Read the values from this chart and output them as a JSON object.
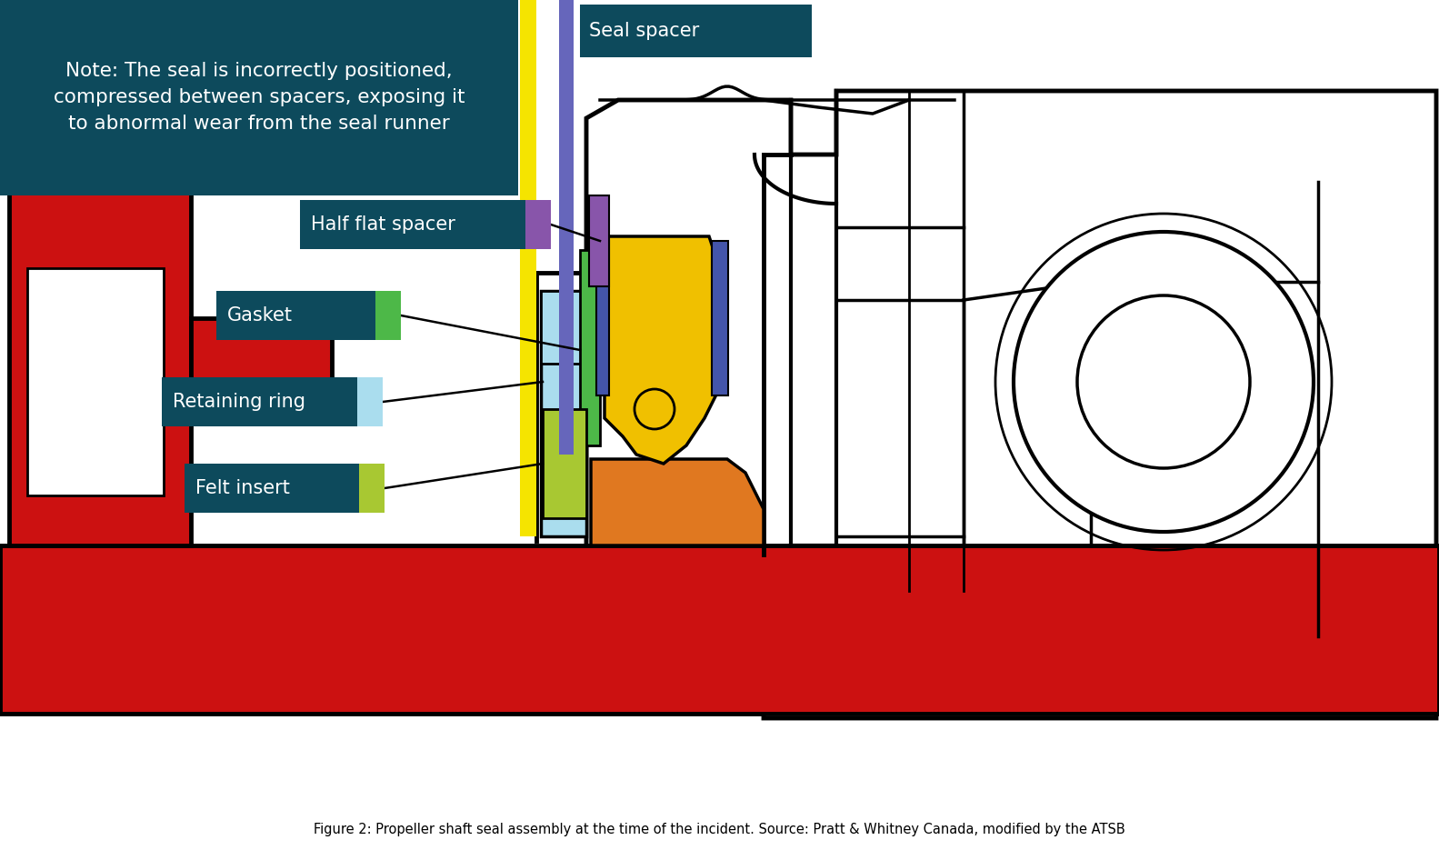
{
  "bg_color": "#ffffff",
  "note_box_color": "#0d4a5c",
  "label_box_color": "#0d4a5c",
  "note_text": "Note: The seal is incorrectly positioned,\ncompressed between spacers, exposing it\nto abnormal wear from the seal runner",
  "note_text_color": "#ffffff",
  "seal_spacer_label": "Seal spacer",
  "half_flat_label": "Half flat spacer",
  "gasket_label": "Gasket",
  "retaining_label": "Retaining ring",
  "felt_label": "Felt insert",
  "label_text_color": "#ffffff",
  "yellow_stripe_color": "#f5e400",
  "purple_stripe_color": "#6666bb",
  "green_color": "#4db848",
  "light_blue_color": "#aaddee",
  "lime_color": "#a8c832",
  "purple_swatch": "#8855aa",
  "red_color": "#cc1111",
  "orange_color": "#e07820",
  "yellow_part_color": "#f0c000",
  "dark_blue_part": "#4455aa",
  "hatching_color": "#8855aa",
  "caption": "Figure 2: Propeller shaft seal assembly at the time of the incident. Source: Pratt & Whitney Canada, modified by the ATSB"
}
